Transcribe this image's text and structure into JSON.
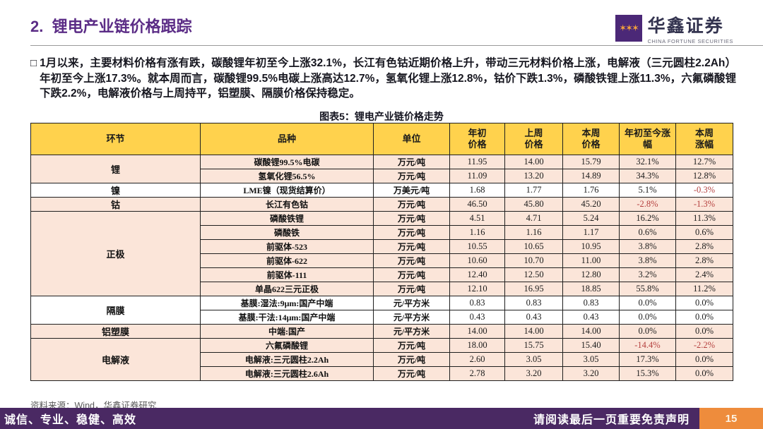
{
  "header": {
    "title": "2.  锂电产业链价格跟踪",
    "logo": {
      "name": "华鑫证券",
      "subtitle": "CHINA FORTUNE SECURITIES",
      "icon": "company-logo-icon"
    }
  },
  "summary": {
    "bullet": "□",
    "text": "1月以来，主要材料价格有涨有跌，碳酸锂年初至今上涨32.1%，长江有色钴近期价格上升，带动三元材料价格上涨，电解液（三元圆柱2.2Ah）年初至今上涨17.3%。就本周而言，碳酸锂99.5%电碳上涨高达12.7%，氢氧化锂上涨12.8%，钴价下跌1.3%，磷酸铁锂上涨11.3%，六氟磷酸锂下跌2.2%，电解液价格与上周持平，铝塑膜、隔膜价格保持稳定。"
  },
  "table": {
    "caption": "图表5：锂电产业链价格走势",
    "columns": [
      "环节",
      "品种",
      "单位",
      "年初\n价格",
      "上周\n价格",
      "本周\n价格",
      "年初至今涨\n幅",
      "本周\n涨幅"
    ],
    "groups": [
      {
        "segment": "锂",
        "shade": "pink",
        "rows": [
          {
            "variety": "碳酸锂99.5%电碳",
            "unit": "万元/吨",
            "start": "11.95",
            "last_week": "14.00",
            "this_week": "15.79",
            "ytd_change": "32.1%",
            "week_change": "12.7%"
          },
          {
            "variety": "氢氧化锂56.5%",
            "unit": "万元/吨",
            "start": "11.09",
            "last_week": "13.20",
            "this_week": "14.89",
            "ytd_change": "34.3%",
            "week_change": "12.8%"
          }
        ]
      },
      {
        "segment": "镍",
        "shade": "white",
        "rows": [
          {
            "variety": "LME镍（现货结算价）",
            "unit": "万美元/吨",
            "start": "1.68",
            "last_week": "1.77",
            "this_week": "1.76",
            "ytd_change": "5.1%",
            "week_change": "-0.3%"
          }
        ]
      },
      {
        "segment": "钴",
        "shade": "pink",
        "rows": [
          {
            "variety": "长江有色钴",
            "unit": "万元/吨",
            "start": "46.50",
            "last_week": "45.80",
            "this_week": "45.20",
            "ytd_change": "-2.8%",
            "week_change": "-1.3%"
          }
        ]
      },
      {
        "segment": "正极",
        "shade": "pink",
        "rows": [
          {
            "variety": "磷酸铁锂",
            "unit": "万元/吨",
            "start": "4.51",
            "last_week": "4.71",
            "this_week": "5.24",
            "ytd_change": "16.2%",
            "week_change": "11.3%"
          },
          {
            "variety": "磷酸铁",
            "unit": "万元/吨",
            "start": "1.16",
            "last_week": "1.16",
            "this_week": "1.17",
            "ytd_change": "0.6%",
            "week_change": "0.6%"
          },
          {
            "variety": "前驱体-523",
            "unit": "万元/吨",
            "start": "10.55",
            "last_week": "10.65",
            "this_week": "10.95",
            "ytd_change": "3.8%",
            "week_change": "2.8%"
          },
          {
            "variety": "前驱体-622",
            "unit": "万元/吨",
            "start": "10.60",
            "last_week": "10.70",
            "this_week": "11.00",
            "ytd_change": "3.8%",
            "week_change": "2.8%"
          },
          {
            "variety": "前驱体-111",
            "unit": "万元/吨",
            "start": "12.40",
            "last_week": "12.50",
            "this_week": "12.80",
            "ytd_change": "3.2%",
            "week_change": "2.4%"
          },
          {
            "variety": "单晶622三元正极",
            "unit": "万元/吨",
            "start": "12.10",
            "last_week": "16.95",
            "this_week": "18.85",
            "ytd_change": "55.8%",
            "week_change": "11.2%"
          }
        ]
      },
      {
        "segment": "隔膜",
        "shade": "white",
        "rows": [
          {
            "variety": "基膜:湿法:9μm:国产中端",
            "unit": "元/平方米",
            "start": "0.83",
            "last_week": "0.83",
            "this_week": "0.83",
            "ytd_change": "0.0%",
            "week_change": "0.0%"
          },
          {
            "variety": "基膜:干法:14μm:国产中端",
            "unit": "元/平方米",
            "start": "0.43",
            "last_week": "0.43",
            "this_week": "0.43",
            "ytd_change": "0.0%",
            "week_change": "0.0%"
          }
        ]
      },
      {
        "segment": "铝塑膜",
        "shade": "pink",
        "rows": [
          {
            "variety": "中端:国产",
            "unit": "元/平方米",
            "start": "14.00",
            "last_week": "14.00",
            "this_week": "14.00",
            "ytd_change": "0.0%",
            "week_change": "0.0%"
          }
        ]
      },
      {
        "segment": "电解液",
        "shade": "pink",
        "rows": [
          {
            "variety": "六氟磷酸锂",
            "unit": "万元/吨",
            "start": "18.00",
            "last_week": "15.75",
            "this_week": "15.40",
            "ytd_change": "-14.4%",
            "week_change": "-2.2%"
          },
          {
            "variety": "电解液:三元圆柱2.2Ah",
            "unit": "万元/吨",
            "start": "2.60",
            "last_week": "3.05",
            "this_week": "3.05",
            "ytd_change": "17.3%",
            "week_change": "0.0%"
          },
          {
            "variety": "电解液:三元圆柱2.6Ah",
            "unit": "万元/吨",
            "start": "2.78",
            "last_week": "3.20",
            "this_week": "3.20",
            "ytd_change": "15.3%",
            "week_change": "0.0%"
          }
        ]
      }
    ]
  },
  "source": "资料来源：Wind，华鑫证券研究",
  "footer": {
    "slogan": "诚信、专业、稳健、高效",
    "disclaimer": "请阅读最后一页重要免责声明",
    "page": "15"
  },
  "colors": {
    "title_purple": "#5b2c86",
    "table_header_yellow": "#ffd24d",
    "row_pink": "#fbe5d9",
    "negative_red": "#b5413f",
    "footer_purple": "#4a2963",
    "page_box_orange": "#ee8c3c"
  }
}
